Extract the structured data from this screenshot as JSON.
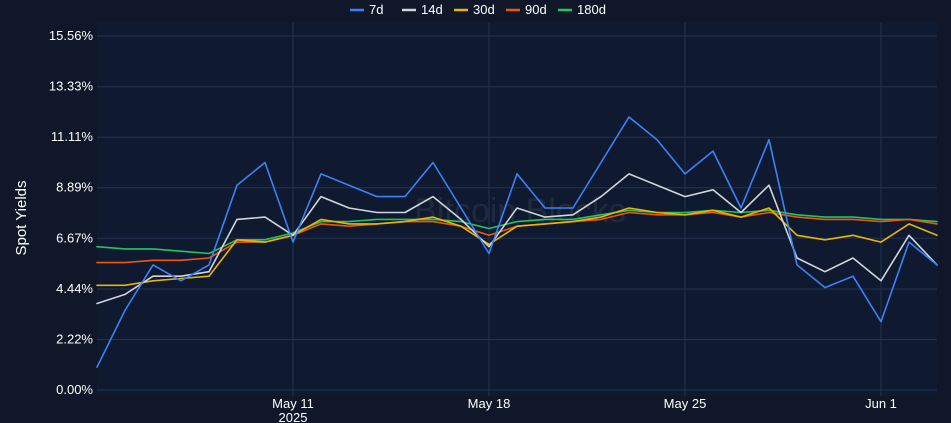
{
  "chart_data": {
    "type": "line",
    "title": "",
    "ylabel": "Spot Yields",
    "xlabel": "",
    "ylim": [
      0,
      15.56
    ],
    "y_ticks": [
      "0.00%",
      "2.22%",
      "4.44%",
      "6.67%",
      "8.89%",
      "11.11%",
      "13.33%",
      "15.56%"
    ],
    "x_range": [
      "2025-05-04",
      "2025-06-03"
    ],
    "x_ticks": [
      {
        "date": "2025-05-11",
        "label": "May 11",
        "sublabel": "2025"
      },
      {
        "date": "2025-05-18",
        "label": "May 18",
        "sublabel": ""
      },
      {
        "date": "2025-05-25",
        "label": "May 25",
        "sublabel": ""
      },
      {
        "date": "2025-06-01",
        "label": "Jun 1",
        "sublabel": ""
      }
    ],
    "legend_position": "top-center",
    "grid": true,
    "watermark": "Bitcoin Blocks",
    "x": [
      "2025-05-04",
      "2025-05-05",
      "2025-05-06",
      "2025-05-07",
      "2025-05-08",
      "2025-05-09",
      "2025-05-10",
      "2025-05-11",
      "2025-05-12",
      "2025-05-13",
      "2025-05-14",
      "2025-05-15",
      "2025-05-16",
      "2025-05-17",
      "2025-05-18",
      "2025-05-19",
      "2025-05-20",
      "2025-05-21",
      "2025-05-22",
      "2025-05-23",
      "2025-05-24",
      "2025-05-25",
      "2025-05-26",
      "2025-05-27",
      "2025-05-28",
      "2025-05-29",
      "2025-05-30",
      "2025-05-31",
      "2025-06-01",
      "2025-06-02",
      "2025-06-03"
    ],
    "series": [
      {
        "name": "7d",
        "color": "#3b82f6",
        "values": [
          1.0,
          3.5,
          5.5,
          4.8,
          5.5,
          9.0,
          10.0,
          6.5,
          9.5,
          9.0,
          8.5,
          8.5,
          10.0,
          8.0,
          6.0,
          9.5,
          8.0,
          8.0,
          10.0,
          12.0,
          11.0,
          9.5,
          10.5,
          8.0,
          11.0,
          5.5,
          4.5,
          5.0,
          3.0,
          6.5,
          5.5
        ]
      },
      {
        "name": "14d",
        "color": "#d1d5db",
        "values": [
          3.8,
          4.2,
          5.0,
          5.0,
          5.2,
          7.5,
          7.6,
          6.8,
          8.5,
          8.0,
          7.8,
          7.8,
          8.5,
          7.5,
          6.3,
          8.0,
          7.6,
          7.7,
          8.5,
          9.5,
          9.0,
          8.5,
          8.8,
          7.8,
          9.0,
          5.8,
          5.2,
          5.8,
          4.8,
          6.8,
          5.5
        ]
      },
      {
        "name": "30d",
        "color": "#eab308",
        "values": [
          4.6,
          4.6,
          4.8,
          4.9,
          5.0,
          6.6,
          6.5,
          6.8,
          7.5,
          7.3,
          7.3,
          7.4,
          7.6,
          7.2,
          6.4,
          7.2,
          7.3,
          7.4,
          7.6,
          8.0,
          7.8,
          7.7,
          7.9,
          7.6,
          8.0,
          6.8,
          6.6,
          6.8,
          6.5,
          7.3,
          6.8
        ]
      },
      {
        "name": "90d",
        "color": "#ea580c",
        "values": [
          5.6,
          5.6,
          5.7,
          5.7,
          5.8,
          6.5,
          6.5,
          6.8,
          7.3,
          7.2,
          7.3,
          7.4,
          7.4,
          7.2,
          6.8,
          7.2,
          7.3,
          7.4,
          7.5,
          7.8,
          7.7,
          7.7,
          7.8,
          7.6,
          7.8,
          7.6,
          7.5,
          7.5,
          7.4,
          7.5,
          7.3
        ]
      },
      {
        "name": "180d",
        "color": "#22c55e",
        "values": [
          6.3,
          6.2,
          6.2,
          6.1,
          6.0,
          6.6,
          6.6,
          6.9,
          7.4,
          7.4,
          7.5,
          7.5,
          7.5,
          7.4,
          7.1,
          7.4,
          7.5,
          7.5,
          7.7,
          7.9,
          7.8,
          7.8,
          7.9,
          7.8,
          7.9,
          7.7,
          7.6,
          7.6,
          7.5,
          7.5,
          7.4
        ]
      }
    ]
  }
}
